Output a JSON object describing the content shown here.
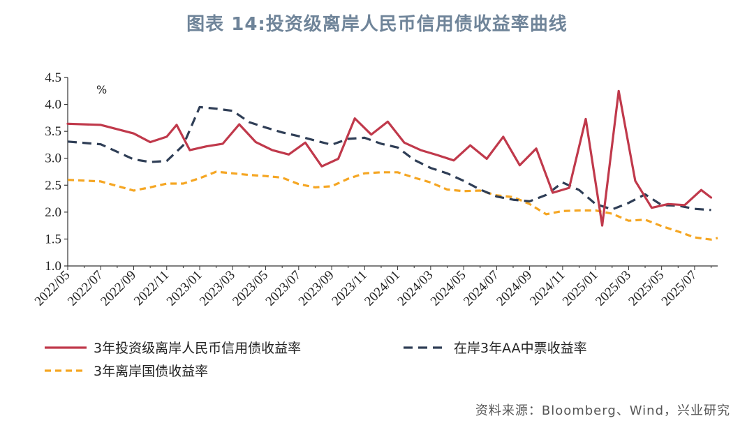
{
  "title": "图表 14:投资级离岸人民币信用债收益率曲线",
  "source": "资料来源：Bloomberg、Wind，兴业研究",
  "chart_data": {
    "type": "line",
    "unit": "%",
    "ylim": [
      1.0,
      4.5
    ],
    "yticks": [
      "1.0",
      "1.5",
      "2.0",
      "2.5",
      "3.0",
      "3.5",
      "4.0",
      "4.5"
    ],
    "xtick_labels": [
      "2022/05",
      "2022/07",
      "2022/09",
      "2022/11",
      "2023/01",
      "2023/03",
      "2023/05",
      "2023/07",
      "2023/09",
      "2023/11",
      "2024/01",
      "2024/03",
      "2024/05",
      "2024/07",
      "2024/09",
      "2024/11",
      "2025/01",
      "2025/03",
      "2025/05",
      "2025/07"
    ],
    "grid": false,
    "legend_position": "bottom",
    "series": [
      {
        "name": "3年投资级离岸人民币信用债收益率",
        "color": "#c0394b",
        "style": "solid",
        "points": [
          [
            0,
            3.64
          ],
          [
            1,
            3.62
          ],
          [
            2,
            3.46
          ],
          [
            2.5,
            3.3
          ],
          [
            3,
            3.4
          ],
          [
            3.3,
            3.62
          ],
          [
            3.7,
            3.15
          ],
          [
            4.2,
            3.22
          ],
          [
            4.7,
            3.27
          ],
          [
            5.2,
            3.63
          ],
          [
            5.7,
            3.3
          ],
          [
            6.2,
            3.15
          ],
          [
            6.7,
            3.07
          ],
          [
            7.2,
            3.29
          ],
          [
            7.7,
            2.85
          ],
          [
            8.2,
            2.99
          ],
          [
            8.7,
            3.74
          ],
          [
            9.2,
            3.44
          ],
          [
            9.7,
            3.68
          ],
          [
            10.2,
            3.29
          ],
          [
            10.7,
            3.15
          ],
          [
            11.2,
            3.06
          ],
          [
            11.7,
            2.96
          ],
          [
            12.2,
            3.24
          ],
          [
            12.7,
            2.99
          ],
          [
            13.2,
            3.4
          ],
          [
            13.7,
            2.87
          ],
          [
            14.2,
            3.18
          ],
          [
            14.7,
            2.36
          ],
          [
            15.2,
            2.45
          ],
          [
            15.7,
            3.73
          ],
          [
            16.2,
            1.75
          ],
          [
            16.7,
            4.25
          ],
          [
            17.2,
            2.58
          ],
          [
            17.7,
            2.08
          ],
          [
            18.2,
            2.15
          ],
          [
            18.7,
            2.13
          ],
          [
            19.2,
            2.41
          ],
          [
            19.5,
            2.27
          ]
        ]
      },
      {
        "name": "在岸3年AA中票收益率",
        "color": "#2f3e56",
        "style": "dashed",
        "points": [
          [
            0,
            3.31
          ],
          [
            1,
            3.26
          ],
          [
            2,
            2.98
          ],
          [
            2.5,
            2.93
          ],
          [
            3,
            2.95
          ],
          [
            3.5,
            3.24
          ],
          [
            4,
            3.95
          ],
          [
            4.5,
            3.92
          ],
          [
            5,
            3.88
          ],
          [
            5.5,
            3.67
          ],
          [
            6,
            3.57
          ],
          [
            6.5,
            3.48
          ],
          [
            7,
            3.41
          ],
          [
            7.5,
            3.33
          ],
          [
            8,
            3.25
          ],
          [
            8.5,
            3.36
          ],
          [
            9,
            3.38
          ],
          [
            9.5,
            3.27
          ],
          [
            10,
            3.2
          ],
          [
            10.5,
            2.97
          ],
          [
            11,
            2.82
          ],
          [
            11.5,
            2.72
          ],
          [
            12,
            2.58
          ],
          [
            12.5,
            2.42
          ],
          [
            13,
            2.29
          ],
          [
            13.5,
            2.23
          ],
          [
            14,
            2.2
          ],
          [
            14.5,
            2.32
          ],
          [
            15,
            2.55
          ],
          [
            15.5,
            2.41
          ],
          [
            16,
            2.15
          ],
          [
            16.5,
            2.05
          ],
          [
            17,
            2.17
          ],
          [
            17.5,
            2.33
          ],
          [
            18,
            2.13
          ],
          [
            18.5,
            2.12
          ],
          [
            19,
            2.06
          ],
          [
            19.5,
            2.04
          ]
        ]
      },
      {
        "name": "3年离岸国债收益率",
        "color": "#f5a623",
        "style": "dashed",
        "points": [
          [
            0,
            2.6
          ],
          [
            1,
            2.57
          ],
          [
            2,
            2.4
          ],
          [
            2.5,
            2.46
          ],
          [
            3,
            2.53
          ],
          [
            3.5,
            2.53
          ],
          [
            4,
            2.63
          ],
          [
            4.5,
            2.75
          ],
          [
            5,
            2.72
          ],
          [
            5.5,
            2.69
          ],
          [
            6,
            2.67
          ],
          [
            6.5,
            2.64
          ],
          [
            7,
            2.52
          ],
          [
            7.5,
            2.46
          ],
          [
            8,
            2.48
          ],
          [
            8.5,
            2.62
          ],
          [
            9,
            2.72
          ],
          [
            9.5,
            2.74
          ],
          [
            10,
            2.74
          ],
          [
            10.5,
            2.64
          ],
          [
            11,
            2.55
          ],
          [
            11.5,
            2.42
          ],
          [
            12,
            2.39
          ],
          [
            12.5,
            2.4
          ],
          [
            13,
            2.31
          ],
          [
            13.5,
            2.28
          ],
          [
            14,
            2.15
          ],
          [
            14.5,
            1.96
          ],
          [
            15,
            2.02
          ],
          [
            15.5,
            2.03
          ],
          [
            16,
            2.03
          ],
          [
            16.5,
            1.97
          ],
          [
            17,
            1.84
          ],
          [
            17.5,
            1.86
          ],
          [
            18,
            1.74
          ],
          [
            18.5,
            1.64
          ],
          [
            19,
            1.53
          ],
          [
            19.5,
            1.49
          ],
          [
            19.7,
            1.52
          ]
        ]
      }
    ]
  }
}
